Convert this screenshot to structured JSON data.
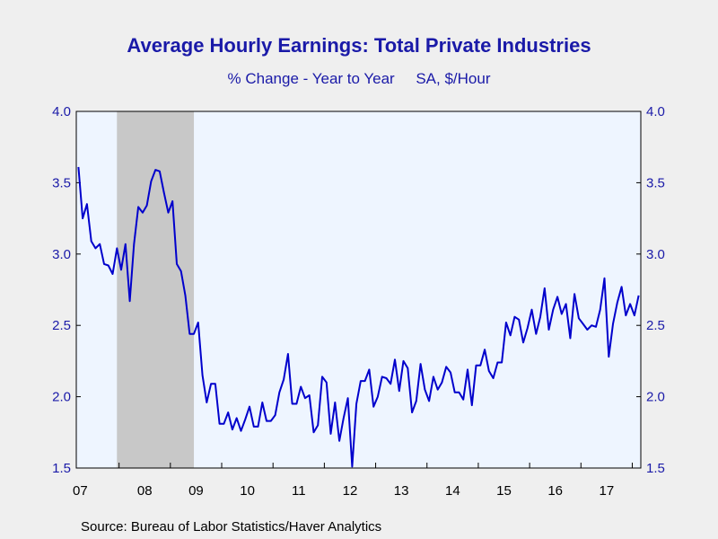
{
  "chart_data": {
    "type": "line",
    "title": "Average Hourly Earnings: Total Private Industries",
    "subtitle": "% Change - Year to Year     SA, $/Hour",
    "source": "Source:  Bureau of Labor Statistics/Haver Analytics",
    "ylim": [
      1.5,
      4.0
    ],
    "y_ticks": [
      "1.5",
      "2.0",
      "2.5",
      "3.0",
      "3.5",
      "4.0"
    ],
    "x_tick_labels": [
      "07",
      "08",
      "09",
      "10",
      "11",
      "12",
      "13",
      "14",
      "15",
      "16",
      "17"
    ],
    "x_start": "2007-03",
    "x_end": "2018-02",
    "recession": {
      "start": "2007-12",
      "end": "2009-06"
    },
    "grid": false,
    "colors": {
      "line": "#0000cc",
      "plot_bg": "#eef5ff",
      "recession": "#c8c8c8",
      "text": "#1a1aa8"
    },
    "series": [
      {
        "values": [
          3.61,
          3.25,
          3.35,
          3.09,
          3.04,
          3.07,
          2.93,
          2.92,
          2.86,
          3.04,
          2.89,
          3.07,
          2.67,
          3.07,
          3.33,
          3.29,
          3.34,
          3.51,
          3.59,
          3.58,
          3.43,
          3.29,
          3.37,
          2.93,
          2.88,
          2.71,
          2.44,
          2.44,
          2.52,
          2.15,
          1.96,
          2.09,
          2.09,
          1.81,
          1.81,
          1.89,
          1.77,
          1.85,
          1.76,
          1.84,
          1.93,
          1.79,
          1.79,
          1.96,
          1.83,
          1.83,
          1.87,
          2.03,
          2.12,
          2.3,
          1.95,
          1.95,
          2.07,
          1.99,
          2.01,
          1.75,
          1.8,
          2.14,
          2.1,
          1.74,
          1.96,
          1.69,
          1.85,
          1.99,
          1.51,
          1.95,
          2.11,
          2.11,
          2.19,
          1.93,
          2.0,
          2.14,
          2.13,
          2.09,
          2.26,
          2.04,
          2.25,
          2.2,
          1.89,
          1.97,
          2.23,
          2.05,
          1.97,
          2.14,
          2.05,
          2.1,
          2.21,
          2.17,
          2.03,
          2.03,
          1.98,
          2.19,
          1.94,
          2.22,
          2.22,
          2.33,
          2.18,
          2.13,
          2.24,
          2.24,
          2.52,
          2.43,
          2.56,
          2.54,
          2.38,
          2.48,
          2.61,
          2.44,
          2.56,
          2.76,
          2.47,
          2.61,
          2.7,
          2.58,
          2.65,
          2.41,
          2.72,
          2.55,
          2.51,
          2.47,
          2.5,
          2.49,
          2.61,
          2.83,
          2.28,
          2.51,
          2.66,
          2.77,
          2.57,
          2.65,
          2.57,
          2.71
        ]
      }
    ]
  }
}
